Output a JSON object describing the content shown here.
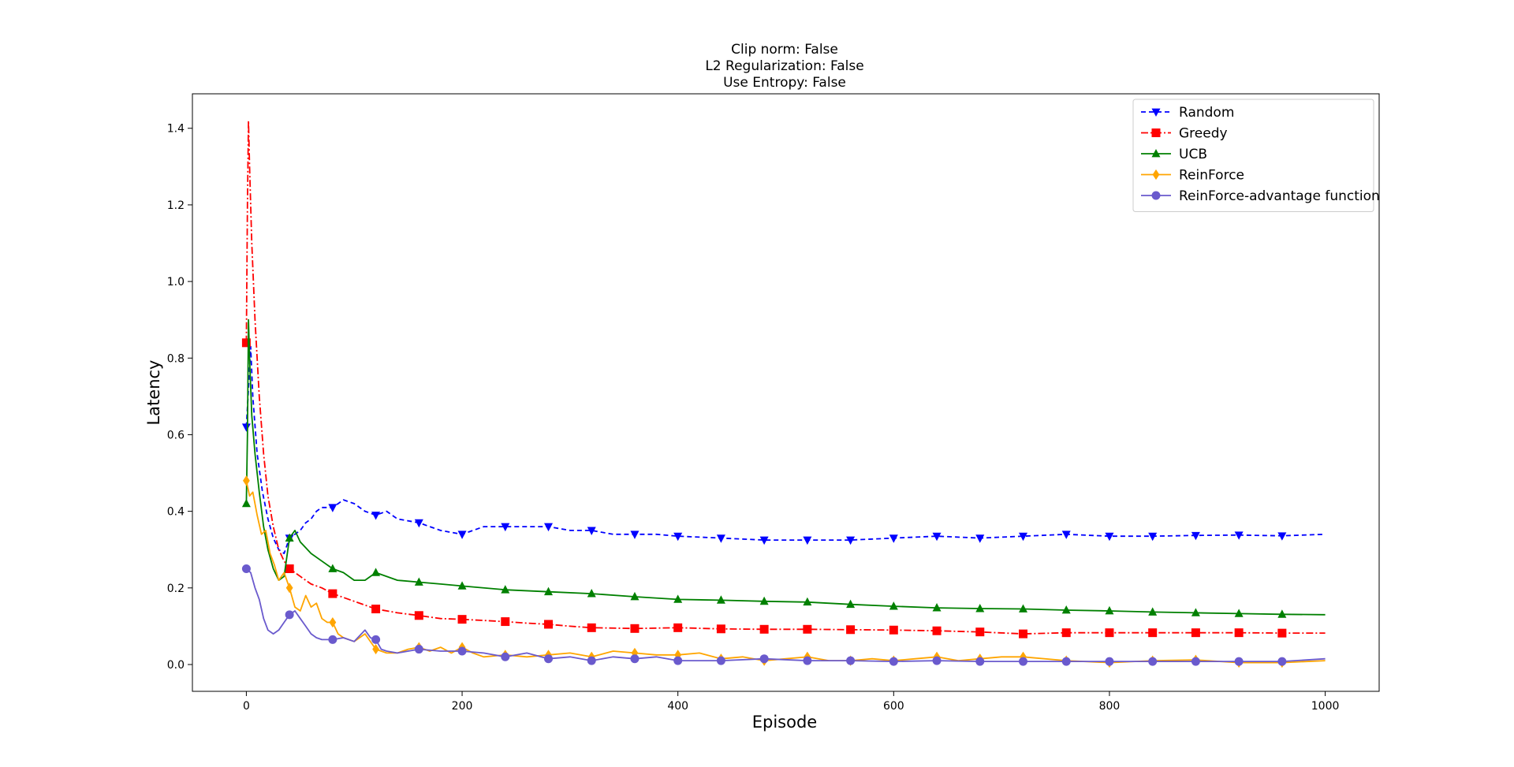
{
  "chart_data": {
    "type": "line",
    "title_lines": [
      "Clip norm: False",
      "L2 Regularization: False",
      "Use Entropy: False"
    ],
    "xlabel": "Episode",
    "ylabel": "Latency",
    "xlim": [
      -50,
      1050
    ],
    "ylim": [
      -0.07,
      1.49
    ],
    "xticks": [
      0,
      200,
      400,
      600,
      800,
      1000
    ],
    "yticks": [
      0.0,
      0.2,
      0.4,
      0.6,
      0.8,
      1.0,
      1.2,
      1.4
    ],
    "xtick_labels": [
      "0",
      "200",
      "400",
      "600",
      "800",
      "1000"
    ],
    "ytick_labels": [
      "0.0",
      "0.2",
      "0.4",
      "0.6",
      "0.8",
      "1.0",
      "1.2",
      "1.4"
    ],
    "grid": false,
    "legend_position": "top-right",
    "series": [
      {
        "name": "Random",
        "color": "#0000ff",
        "dash": "6,4",
        "marker": "triangle-down",
        "points": [
          [
            0,
            0.62
          ],
          [
            2,
            0.72
          ],
          [
            4,
            0.83
          ],
          [
            6,
            0.7
          ],
          [
            10,
            0.55
          ],
          [
            15,
            0.45
          ],
          [
            20,
            0.38
          ],
          [
            25,
            0.33
          ],
          [
            30,
            0.3
          ],
          [
            35,
            0.29
          ],
          [
            40,
            0.33
          ],
          [
            45,
            0.34
          ],
          [
            50,
            0.35
          ],
          [
            55,
            0.37
          ],
          [
            60,
            0.38
          ],
          [
            65,
            0.4
          ],
          [
            70,
            0.41
          ],
          [
            80,
            0.41
          ],
          [
            90,
            0.43
          ],
          [
            100,
            0.42
          ],
          [
            110,
            0.4
          ],
          [
            120,
            0.39
          ],
          [
            130,
            0.4
          ],
          [
            140,
            0.38
          ],
          [
            160,
            0.37
          ],
          [
            180,
            0.35
          ],
          [
            200,
            0.34
          ],
          [
            220,
            0.36
          ],
          [
            240,
            0.36
          ],
          [
            260,
            0.36
          ],
          [
            280,
            0.36
          ],
          [
            300,
            0.35
          ],
          [
            320,
            0.35
          ],
          [
            340,
            0.34
          ],
          [
            360,
            0.34
          ],
          [
            380,
            0.34
          ],
          [
            400,
            0.335
          ],
          [
            440,
            0.33
          ],
          [
            480,
            0.325
          ],
          [
            520,
            0.325
          ],
          [
            560,
            0.325
          ],
          [
            600,
            0.33
          ],
          [
            640,
            0.335
          ],
          [
            680,
            0.33
          ],
          [
            720,
            0.335
          ],
          [
            760,
            0.34
          ],
          [
            800,
            0.335
          ],
          [
            840,
            0.335
          ],
          [
            880,
            0.337
          ],
          [
            920,
            0.338
          ],
          [
            960,
            0.336
          ],
          [
            1000,
            0.34
          ]
        ],
        "marker_x": [
          0,
          40,
          80,
          120,
          160,
          200,
          240,
          280,
          320,
          360,
          400,
          440,
          480,
          520,
          560,
          600,
          640,
          680,
          720,
          760,
          800,
          840,
          880,
          920,
          960
        ]
      },
      {
        "name": "Greedy",
        "color": "#ff0000",
        "dash": "9,3,2,3",
        "marker": "square",
        "points": [
          [
            0,
            0.84
          ],
          [
            1,
            1.2
          ],
          [
            2,
            1.42
          ],
          [
            3,
            1.3
          ],
          [
            5,
            1.1
          ],
          [
            8,
            0.9
          ],
          [
            12,
            0.7
          ],
          [
            16,
            0.55
          ],
          [
            20,
            0.44
          ],
          [
            25,
            0.36
          ],
          [
            30,
            0.3
          ],
          [
            35,
            0.27
          ],
          [
            40,
            0.25
          ],
          [
            50,
            0.23
          ],
          [
            60,
            0.21
          ],
          [
            70,
            0.2
          ],
          [
            80,
            0.185
          ],
          [
            100,
            0.165
          ],
          [
            120,
            0.145
          ],
          [
            140,
            0.135
          ],
          [
            160,
            0.128
          ],
          [
            180,
            0.12
          ],
          [
            200,
            0.118
          ],
          [
            220,
            0.115
          ],
          [
            240,
            0.112
          ],
          [
            260,
            0.108
          ],
          [
            280,
            0.105
          ],
          [
            300,
            0.1
          ],
          [
            320,
            0.096
          ],
          [
            360,
            0.094
          ],
          [
            400,
            0.096
          ],
          [
            440,
            0.093
          ],
          [
            480,
            0.092
          ],
          [
            520,
            0.092
          ],
          [
            560,
            0.091
          ],
          [
            600,
            0.09
          ],
          [
            640,
            0.088
          ],
          [
            680,
            0.085
          ],
          [
            720,
            0.08
          ],
          [
            760,
            0.083
          ],
          [
            800,
            0.083
          ],
          [
            840,
            0.083
          ],
          [
            880,
            0.083
          ],
          [
            920,
            0.083
          ],
          [
            960,
            0.082
          ],
          [
            1000,
            0.082
          ]
        ],
        "marker_x": [
          0,
          40,
          80,
          120,
          160,
          200,
          240,
          280,
          320,
          360,
          400,
          440,
          480,
          520,
          560,
          600,
          640,
          680,
          720,
          760,
          800,
          840,
          880,
          920,
          960
        ]
      },
      {
        "name": "UCB",
        "color": "#008000",
        "dash": "",
        "marker": "triangle-up",
        "points": [
          [
            0,
            0.42
          ],
          [
            1,
            0.6
          ],
          [
            2,
            0.9
          ],
          [
            3,
            0.8
          ],
          [
            5,
            0.65
          ],
          [
            8,
            0.55
          ],
          [
            12,
            0.45
          ],
          [
            16,
            0.36
          ],
          [
            20,
            0.3
          ],
          [
            25,
            0.25
          ],
          [
            30,
            0.22
          ],
          [
            35,
            0.23
          ],
          [
            40,
            0.33
          ],
          [
            45,
            0.35
          ],
          [
            50,
            0.32
          ],
          [
            60,
            0.29
          ],
          [
            70,
            0.27
          ],
          [
            80,
            0.25
          ],
          [
            90,
            0.24
          ],
          [
            100,
            0.22
          ],
          [
            110,
            0.22
          ],
          [
            120,
            0.24
          ],
          [
            140,
            0.22
          ],
          [
            160,
            0.215
          ],
          [
            180,
            0.21
          ],
          [
            200,
            0.205
          ],
          [
            240,
            0.195
          ],
          [
            280,
            0.19
          ],
          [
            320,
            0.185
          ],
          [
            360,
            0.177
          ],
          [
            400,
            0.17
          ],
          [
            440,
            0.168
          ],
          [
            480,
            0.165
          ],
          [
            520,
            0.163
          ],
          [
            560,
            0.157
          ],
          [
            600,
            0.152
          ],
          [
            640,
            0.148
          ],
          [
            680,
            0.146
          ],
          [
            720,
            0.145
          ],
          [
            760,
            0.142
          ],
          [
            800,
            0.14
          ],
          [
            840,
            0.137
          ],
          [
            880,
            0.135
          ],
          [
            920,
            0.133
          ],
          [
            960,
            0.131
          ],
          [
            1000,
            0.13
          ]
        ],
        "marker_x": [
          0,
          40,
          80,
          120,
          160,
          200,
          240,
          280,
          320,
          360,
          400,
          440,
          480,
          520,
          560,
          600,
          640,
          680,
          720,
          760,
          800,
          840,
          880,
          920,
          960
        ]
      },
      {
        "name": "ReinForce",
        "color": "#ffa500",
        "dash": "",
        "marker": "diamond",
        "points": [
          [
            0,
            0.48
          ],
          [
            3,
            0.44
          ],
          [
            6,
            0.45
          ],
          [
            10,
            0.39
          ],
          [
            14,
            0.34
          ],
          [
            18,
            0.35
          ],
          [
            22,
            0.29
          ],
          [
            26,
            0.26
          ],
          [
            30,
            0.22
          ],
          [
            35,
            0.24
          ],
          [
            40,
            0.2
          ],
          [
            45,
            0.15
          ],
          [
            50,
            0.14
          ],
          [
            55,
            0.18
          ],
          [
            60,
            0.15
          ],
          [
            65,
            0.16
          ],
          [
            70,
            0.12
          ],
          [
            75,
            0.11
          ],
          [
            80,
            0.11
          ],
          [
            85,
            0.08
          ],
          [
            90,
            0.07
          ],
          [
            100,
            0.06
          ],
          [
            110,
            0.08
          ],
          [
            120,
            0.04
          ],
          [
            130,
            0.03
          ],
          [
            140,
            0.03
          ],
          [
            150,
            0.04
          ],
          [
            160,
            0.045
          ],
          [
            170,
            0.035
          ],
          [
            180,
            0.045
          ],
          [
            190,
            0.03
          ],
          [
            200,
            0.045
          ],
          [
            210,
            0.03
          ],
          [
            220,
            0.02
          ],
          [
            240,
            0.025
          ],
          [
            260,
            0.02
          ],
          [
            280,
            0.025
          ],
          [
            300,
            0.03
          ],
          [
            320,
            0.02
          ],
          [
            340,
            0.035
          ],
          [
            360,
            0.03
          ],
          [
            380,
            0.025
          ],
          [
            400,
            0.025
          ],
          [
            420,
            0.03
          ],
          [
            440,
            0.015
          ],
          [
            460,
            0.02
          ],
          [
            480,
            0.01
          ],
          [
            500,
            0.015
          ],
          [
            520,
            0.02
          ],
          [
            540,
            0.01
          ],
          [
            560,
            0.01
          ],
          [
            580,
            0.015
          ],
          [
            600,
            0.01
          ],
          [
            620,
            0.015
          ],
          [
            640,
            0.02
          ],
          [
            660,
            0.01
          ],
          [
            680,
            0.015
          ],
          [
            700,
            0.02
          ],
          [
            720,
            0.02
          ],
          [
            760,
            0.01
          ],
          [
            800,
            0.005
          ],
          [
            840,
            0.01
          ],
          [
            880,
            0.012
          ],
          [
            920,
            0.005
          ],
          [
            960,
            0.005
          ],
          [
            1000,
            0.01
          ]
        ],
        "marker_x": [
          0,
          40,
          80,
          120,
          160,
          200,
          240,
          280,
          320,
          360,
          400,
          440,
          480,
          520,
          560,
          600,
          640,
          680,
          720,
          760,
          800,
          840,
          880,
          920,
          960
        ]
      },
      {
        "name": "ReinForce-advantage function",
        "color": "#6a5acd",
        "dash": "",
        "marker": "circle",
        "points": [
          [
            0,
            0.25
          ],
          [
            4,
            0.24
          ],
          [
            8,
            0.2
          ],
          [
            12,
            0.17
          ],
          [
            16,
            0.12
          ],
          [
            20,
            0.09
          ],
          [
            25,
            0.08
          ],
          [
            30,
            0.09
          ],
          [
            35,
            0.11
          ],
          [
            40,
            0.13
          ],
          [
            45,
            0.14
          ],
          [
            50,
            0.12
          ],
          [
            55,
            0.1
          ],
          [
            60,
            0.08
          ],
          [
            65,
            0.07
          ],
          [
            70,
            0.065
          ],
          [
            80,
            0.065
          ],
          [
            90,
            0.07
          ],
          [
            100,
            0.06
          ],
          [
            110,
            0.09
          ],
          [
            115,
            0.07
          ],
          [
            120,
            0.065
          ],
          [
            125,
            0.04
          ],
          [
            130,
            0.035
          ],
          [
            140,
            0.03
          ],
          [
            150,
            0.035
          ],
          [
            160,
            0.04
          ],
          [
            180,
            0.035
          ],
          [
            200,
            0.035
          ],
          [
            220,
            0.03
          ],
          [
            240,
            0.02
          ],
          [
            260,
            0.03
          ],
          [
            280,
            0.015
          ],
          [
            300,
            0.02
          ],
          [
            320,
            0.01
          ],
          [
            340,
            0.02
          ],
          [
            360,
            0.015
          ],
          [
            380,
            0.02
          ],
          [
            400,
            0.01
          ],
          [
            440,
            0.01
          ],
          [
            480,
            0.015
          ],
          [
            520,
            0.01
          ],
          [
            560,
            0.01
          ],
          [
            600,
            0.008
          ],
          [
            640,
            0.01
          ],
          [
            680,
            0.008
          ],
          [
            720,
            0.008
          ],
          [
            760,
            0.008
          ],
          [
            800,
            0.008
          ],
          [
            840,
            0.008
          ],
          [
            880,
            0.008
          ],
          [
            920,
            0.008
          ],
          [
            960,
            0.008
          ],
          [
            1000,
            0.015
          ]
        ],
        "marker_x": [
          0,
          40,
          80,
          120,
          160,
          200,
          240,
          280,
          320,
          360,
          400,
          440,
          480,
          520,
          560,
          600,
          640,
          680,
          720,
          760,
          800,
          840,
          880,
          920,
          960
        ]
      }
    ]
  }
}
